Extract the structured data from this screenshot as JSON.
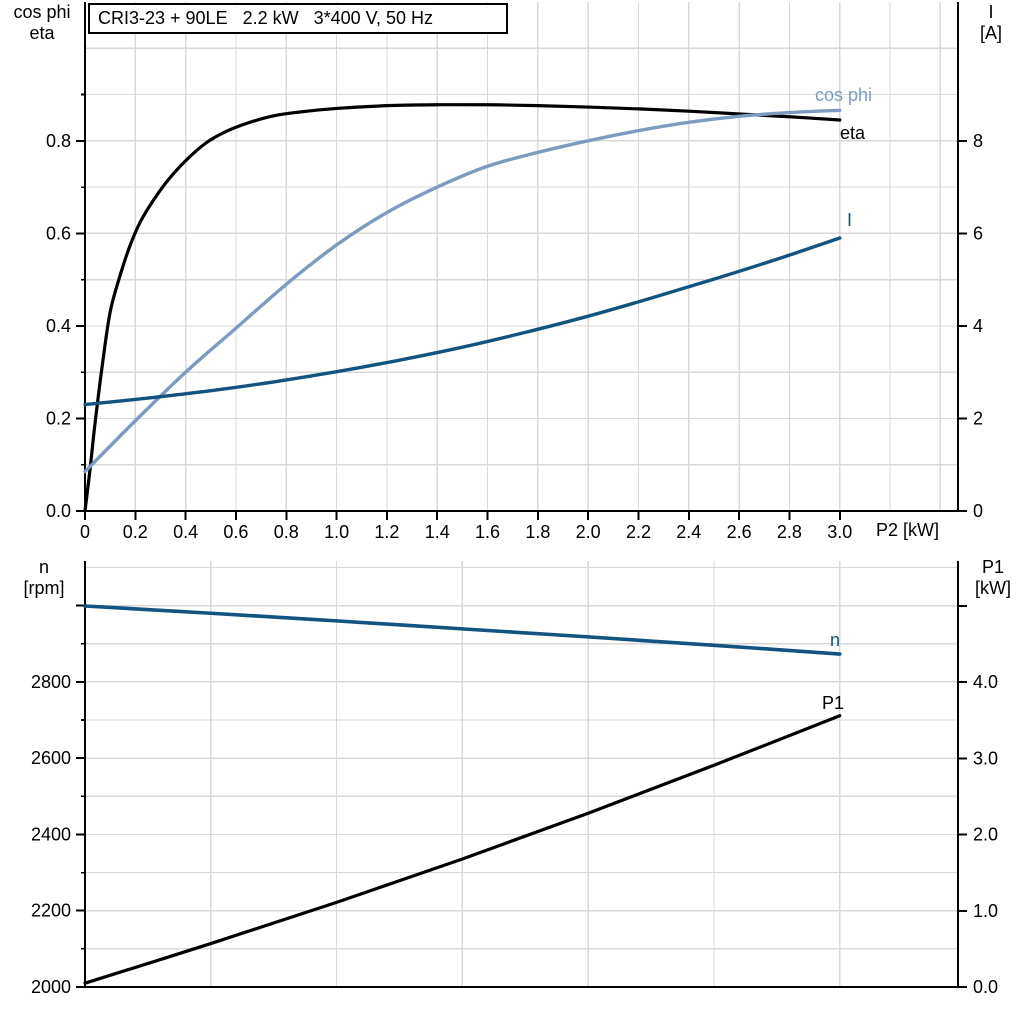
{
  "header": {
    "title_box": "CRI3-23 + 90LE   2.2 kW   3*400 V, 50 Hz"
  },
  "colors": {
    "curve_black": "#000000",
    "curve_dark_blue": "#14527f",
    "curve_light_blue": "#7d9bbf",
    "grid": "#d8d8d8",
    "axis": "#000000",
    "background": "#ffffff"
  },
  "chart_data": [
    {
      "id": "top",
      "type": "line",
      "x_axis": {
        "label": "P2 [kW]",
        "min": 0,
        "max": 3.47,
        "major_ticks": [
          {
            "v": 0,
            "t": "0"
          },
          {
            "v": 0.2,
            "t": "0.2"
          },
          {
            "v": 0.4,
            "t": "0.4"
          },
          {
            "v": 0.6,
            "t": "0.6"
          },
          {
            "v": 0.8,
            "t": "0.8"
          },
          {
            "v": 1.0,
            "t": "1.0"
          },
          {
            "v": 1.2,
            "t": "1.2"
          },
          {
            "v": 1.4,
            "t": "1.4"
          },
          {
            "v": 1.6,
            "t": "1.6"
          },
          {
            "v": 1.8,
            "t": "1.8"
          },
          {
            "v": 2.0,
            "t": "2.0"
          },
          {
            "v": 2.2,
            "t": "2.2"
          },
          {
            "v": 2.4,
            "t": "2.4"
          },
          {
            "v": 2.6,
            "t": "2.6"
          },
          {
            "v": 2.8,
            "t": "2.8"
          },
          {
            "v": 3.0,
            "t": "3.0"
          }
        ],
        "grid_step": 0.2
      },
      "left_axis": {
        "label_lines": [
          "cos phi",
          "eta"
        ],
        "min": 0,
        "max": 1.1,
        "major_ticks": [
          {
            "v": 0,
            "t": "0.0"
          },
          {
            "v": 0.2,
            "t": "0.2"
          },
          {
            "v": 0.4,
            "t": "0.4"
          },
          {
            "v": 0.6,
            "t": "0.6"
          },
          {
            "v": 0.8,
            "t": "0.8"
          }
        ],
        "minor_ticks": [
          0.1,
          0.3,
          0.5,
          0.7,
          0.9
        ],
        "grid_step": 0.1
      },
      "right_axis": {
        "label_lines": [
          "I",
          "[A]"
        ],
        "min": 0,
        "max": 11,
        "major_ticks": [
          {
            "v": 0,
            "t": "0"
          },
          {
            "v": 2,
            "t": "2"
          },
          {
            "v": 4,
            "t": "4"
          },
          {
            "v": 6,
            "t": "6"
          },
          {
            "v": 8,
            "t": "8"
          }
        ]
      },
      "series": [
        {
          "name": "eta",
          "label": "eta",
          "axis": "left",
          "color_key": "curve_black",
          "x": [
            0,
            0.02,
            0.04,
            0.07,
            0.1,
            0.14,
            0.18,
            0.22,
            0.27,
            0.33,
            0.4,
            0.48,
            0.56,
            0.65,
            0.75,
            0.85,
            1.0,
            1.2,
            1.4,
            1.6,
            1.8,
            2.0,
            2.2,
            2.4,
            2.6,
            2.8,
            3.0
          ],
          "y": [
            0,
            0.09,
            0.19,
            0.32,
            0.43,
            0.51,
            0.575,
            0.625,
            0.67,
            0.715,
            0.757,
            0.795,
            0.82,
            0.839,
            0.854,
            0.862,
            0.87,
            0.876,
            0.878,
            0.878,
            0.876,
            0.873,
            0.869,
            0.864,
            0.858,
            0.852,
            0.845
          ]
        },
        {
          "name": "cos_phi",
          "label": "cos phi",
          "axis": "left",
          "color_key": "curve_light_blue",
          "x": [
            0,
            0.2,
            0.4,
            0.6,
            0.8,
            1.0,
            1.2,
            1.4,
            1.6,
            1.8,
            2.0,
            2.2,
            2.4,
            2.6,
            2.8,
            3.0
          ],
          "y": [
            0.085,
            0.195,
            0.3,
            0.395,
            0.49,
            0.575,
            0.645,
            0.7,
            0.745,
            0.775,
            0.8,
            0.822,
            0.84,
            0.853,
            0.861,
            0.866
          ]
        },
        {
          "name": "I",
          "label": "I",
          "axis": "right",
          "color_key": "curve_dark_blue",
          "x": [
            0,
            0.25,
            0.5,
            0.75,
            1.0,
            1.25,
            1.5,
            1.75,
            2.0,
            2.25,
            2.5,
            2.75,
            3.0
          ],
          "y": [
            2.3,
            2.44,
            2.6,
            2.79,
            3.01,
            3.26,
            3.54,
            3.86,
            4.21,
            4.6,
            5.01,
            5.44,
            5.9
          ]
        }
      ]
    },
    {
      "id": "bottom",
      "type": "line",
      "x_axis": {
        "label": "",
        "min": 0,
        "max": 3.47,
        "major_ticks": [],
        "grid_step": 0.5
      },
      "left_axis": {
        "label_lines": [
          "n",
          "[rpm]"
        ],
        "min": 2000,
        "max": 3117,
        "major_ticks": [
          {
            "v": 2000,
            "t": "2000"
          },
          {
            "v": 2200,
            "t": "2200"
          },
          {
            "v": 2400,
            "t": "2400"
          },
          {
            "v": 2600,
            "t": "2600"
          },
          {
            "v": 2800,
            "t": "2800"
          },
          {
            "v": 3000,
            "t": ""
          }
        ],
        "minor_ticks": [
          2100,
          2300,
          2500,
          2700,
          2900
        ],
        "grid_step": 100
      },
      "right_axis": {
        "label_lines": [
          "P1",
          "[kW]"
        ],
        "min": 0,
        "max": 5.59,
        "major_ticks": [
          {
            "v": 0,
            "t": "0.0"
          },
          {
            "v": 1,
            "t": "1.0"
          },
          {
            "v": 2,
            "t": "2.0"
          },
          {
            "v": 3,
            "t": "3.0"
          },
          {
            "v": 4,
            "t": "4.0"
          },
          {
            "v": 5,
            "t": ""
          }
        ]
      },
      "series": [
        {
          "name": "n",
          "label": "n",
          "axis": "left",
          "color_key": "curve_dark_blue",
          "x": [
            0,
            0.5,
            1.0,
            1.5,
            2.0,
            2.5,
            3.0
          ],
          "y": [
            2999,
            2980,
            2960,
            2939,
            2918,
            2896,
            2873
          ]
        },
        {
          "name": "P1",
          "label": "P1",
          "axis": "right",
          "color_key": "curve_black",
          "x": [
            0,
            0.5,
            1.0,
            1.5,
            2.0,
            2.5,
            3.0
          ],
          "y": [
            0.05,
            0.57,
            1.11,
            1.68,
            2.28,
            2.91,
            3.56
          ]
        }
      ]
    }
  ]
}
